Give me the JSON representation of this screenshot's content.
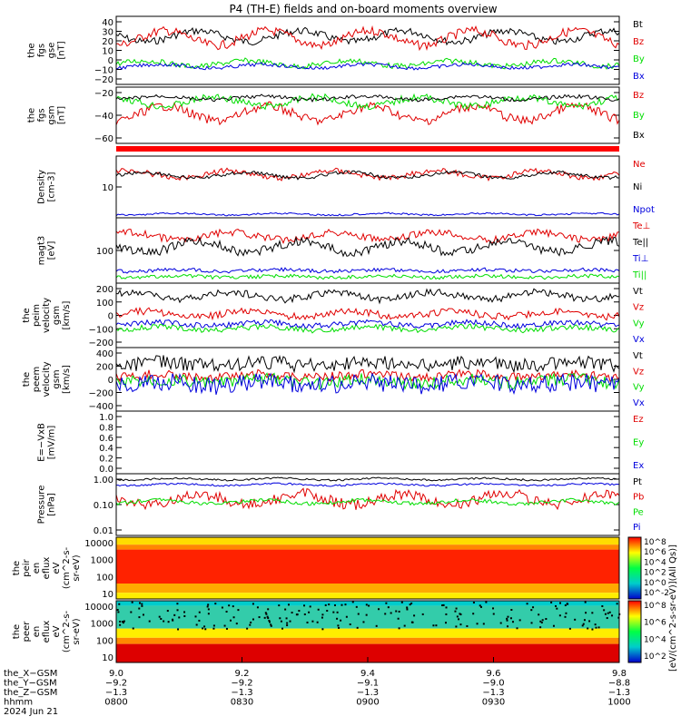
{
  "title": "P4 (TH-E) fields and on-board moments overview",
  "colors": {
    "black": "#000000",
    "red": "#e00000",
    "green": "#00dd00",
    "blue": "#0000dd",
    "bar": "#ff0000"
  },
  "chart_data": [
    {
      "id": "fgs_gse",
      "type": "line",
      "ylabel": [
        "the",
        "fgs",
        "gse",
        "[nT]"
      ],
      "ticks": [
        "40",
        "30",
        "20",
        "10",
        "0",
        "−10",
        "−20"
      ],
      "series": [
        {
          "name": "Bt",
          "color": "black",
          "level": 27,
          "amp": 8
        },
        {
          "name": "Bz",
          "color": "red",
          "level": 28,
          "amp": 6
        },
        {
          "name": "By",
          "color": "green",
          "level": -2,
          "amp": 5
        },
        {
          "name": "Bx",
          "color": "blue",
          "level": -5,
          "amp": 3
        }
      ]
    },
    {
      "id": "fgs_gsm",
      "type": "line",
      "ylabel": [
        "the",
        "fgs",
        "gsm",
        "[nT]"
      ],
      "ticks": [
        "−20",
        "−40",
        "−60"
      ],
      "series": [
        {
          "name": "Bz",
          "color": "red",
          "level": -30,
          "amp": 12
        },
        {
          "name": "By",
          "color": "green",
          "level": -12,
          "amp": 6
        },
        {
          "name": "Bx",
          "color": "black",
          "level": -5,
          "amp": 3
        }
      ]
    },
    {
      "id": "density",
      "type": "line",
      "ylabel": [
        "Density",
        "[cm-3]"
      ],
      "ticks": [
        "10"
      ],
      "series": [
        {
          "name": "Ne",
          "color": "red"
        },
        {
          "name": "Ni",
          "color": "black"
        },
        {
          "name": "Npot",
          "color": "blue"
        }
      ]
    },
    {
      "id": "temp",
      "type": "line",
      "ylabel": [
        "magt3",
        "[eV]"
      ],
      "ticks": [
        "100"
      ],
      "series": [
        {
          "name": "Te⊥",
          "color": "red"
        },
        {
          "name": "Te||",
          "color": "black"
        },
        {
          "name": "Ti⊥",
          "color": "blue"
        },
        {
          "name": "Ti||",
          "color": "green"
        }
      ]
    },
    {
      "id": "peim",
      "type": "line",
      "ylabel": [
        "the",
        "peim",
        "velocity",
        "gsm",
        "[km/s]"
      ],
      "ticks": [
        "200",
        "100",
        "0",
        "−100",
        "−200"
      ],
      "series": [
        {
          "name": "Vt",
          "color": "black"
        },
        {
          "name": "Vz",
          "color": "red"
        },
        {
          "name": "Vy",
          "color": "green"
        },
        {
          "name": "Vx",
          "color": "blue"
        }
      ]
    },
    {
      "id": "peem",
      "type": "line",
      "ylabel": [
        "the",
        "peem",
        "velocity",
        "gsm",
        "[km/s]"
      ],
      "ticks": [
        "400",
        "200",
        "0",
        "−200",
        "−400"
      ],
      "series": [
        {
          "name": "Vt",
          "color": "black"
        },
        {
          "name": "Vz",
          "color": "red"
        },
        {
          "name": "Vy",
          "color": "green"
        },
        {
          "name": "Vx",
          "color": "blue"
        }
      ]
    },
    {
      "id": "efield",
      "type": "line",
      "ylabel": [
        "E=−VxB",
        "[mV/m]"
      ],
      "ticks": [
        "1.0",
        "0.8",
        "0.6",
        "0.4",
        "0.2",
        "0.0"
      ],
      "series": [
        {
          "name": "Ez",
          "color": "red"
        },
        {
          "name": "Ey",
          "color": "green"
        },
        {
          "name": "Ex",
          "color": "blue"
        }
      ]
    },
    {
      "id": "pressure",
      "type": "line",
      "ylabel": [
        "Pressure",
        "[nPa]"
      ],
      "ticks": [
        "1.00",
        "0.10",
        "0.01"
      ],
      "series": [
        {
          "name": "Pt",
          "color": "black"
        },
        {
          "name": "Pb",
          "color": "red"
        },
        {
          "name": "Pe",
          "color": "green"
        },
        {
          "name": "Pi",
          "color": "blue"
        }
      ]
    },
    {
      "id": "peir",
      "type": "heatmap",
      "ylabel": [
        "the",
        "peir",
        "en",
        "eflux",
        "eV",
        "(cm^2-s-",
        "sr-eV)"
      ],
      "ticks": [
        "10000",
        "1000",
        "100",
        "10"
      ],
      "colorbar_ticks": [
        "10^8",
        "10^6",
        "10^4",
        "10^2",
        "10^0",
        "10^-2"
      ]
    },
    {
      "id": "peer",
      "type": "heatmap",
      "ylabel": [
        "the",
        "peer",
        "en",
        "eflux",
        "eV",
        "(cm^2-s-",
        "sr-eV)"
      ],
      "ticks": [
        "10000",
        "1000",
        "100",
        "10"
      ],
      "colorbar_ticks": [
        "10^8",
        "10^6",
        "10^4",
        "10^2"
      ]
    }
  ],
  "colorbar_label": "[eV/(cm^2-s-sr-eV)](All Qs)]",
  "x_axis": {
    "rows": [
      {
        "label": "the_X−GSM",
        "values": [
          "9.0",
          "9.2",
          "9.4",
          "9.6",
          "9.8"
        ]
      },
      {
        "label": "the_Y−GSM",
        "values": [
          "−9.2",
          "−9.2",
          "−9.1",
          "−9.0",
          "−8.8"
        ]
      },
      {
        "label": "the_Z−GSM",
        "values": [
          "−1.3",
          "−1.3",
          "−1.3",
          "−1.3",
          "−1.3"
        ]
      },
      {
        "label": "hhmm",
        "values": [
          "0800",
          "0830",
          "0900",
          "0930",
          "1000"
        ]
      }
    ],
    "date": "2024 Jun 21"
  }
}
